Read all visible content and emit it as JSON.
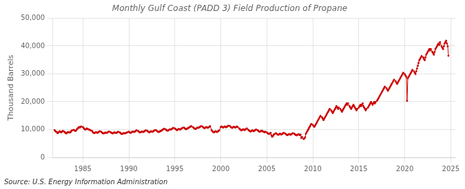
{
  "chart_data": {
    "type": "line",
    "title": "Monthly Gulf Coast (PADD 3) Field Production of Propane",
    "ylabel": "Thousand Barrels",
    "annotations": [
      "Source: U.S. Energy Information Administration"
    ],
    "color": "#cc0000",
    "marker": "square",
    "grid": true,
    "xlim": [
      1981.7,
      2025.5
    ],
    "xticks": [
      1985,
      1990,
      1995,
      2000,
      2005,
      2010,
      2015,
      2020,
      2025
    ],
    "ylim": [
      0,
      50000
    ],
    "yticks": [
      0,
      {
        "value": 10000,
        "label": "10,000"
      },
      {
        "value": 20000,
        "label": "20,000"
      },
      {
        "value": 30000,
        "label": "30,000"
      },
      {
        "value": 40000,
        "label": "40,000"
      },
      {
        "value": 50000,
        "label": "50,000"
      }
    ],
    "x": [
      1981.92,
      1982.0,
      1982.08,
      1982.17,
      1982.25,
      1982.33,
      1982.42,
      1982.5,
      1982.58,
      1982.67,
      1982.75,
      1982.83,
      1983.0,
      1983.08,
      1983.17,
      1983.25,
      1983.33,
      1983.42,
      1983.5,
      1983.58,
      1983.67,
      1983.75,
      1983.83,
      1984.0,
      1984.08,
      1984.17,
      1984.25,
      1984.33,
      1984.42,
      1984.5,
      1984.58,
      1984.67,
      1984.75,
      1984.83,
      1985.0,
      1985.08,
      1985.17,
      1985.25,
      1985.33,
      1985.42,
      1985.5,
      1985.58,
      1985.67,
      1985.75,
      1985.83,
      1986.0,
      1986.08,
      1986.17,
      1986.25,
      1986.33,
      1986.42,
      1986.5,
      1986.58,
      1986.67,
      1986.75,
      1986.83,
      1987.0,
      1987.08,
      1987.17,
      1987.25,
      1987.33,
      1987.42,
      1987.5,
      1987.58,
      1987.67,
      1987.75,
      1987.83,
      1988.0,
      1988.08,
      1988.17,
      1988.25,
      1988.33,
      1988.42,
      1988.5,
      1988.58,
      1988.67,
      1988.75,
      1988.83,
      1989.0,
      1989.08,
      1989.17,
      1989.25,
      1989.33,
      1989.42,
      1989.5,
      1989.58,
      1989.67,
      1989.75,
      1989.83,
      1990.0,
      1990.08,
      1990.17,
      1990.25,
      1990.33,
      1990.42,
      1990.5,
      1990.58,
      1990.67,
      1990.75,
      1990.83,
      1991.0,
      1991.08,
      1991.17,
      1991.25,
      1991.33,
      1991.42,
      1991.5,
      1991.58,
      1991.67,
      1991.75,
      1991.83,
      1992.0,
      1992.08,
      1992.17,
      1992.25,
      1992.33,
      1992.42,
      1992.5,
      1992.58,
      1992.67,
      1992.75,
      1992.83,
      1993.0,
      1993.08,
      1993.17,
      1993.25,
      1993.33,
      1993.42,
      1993.5,
      1993.58,
      1993.67,
      1993.75,
      1993.83,
      1994.0,
      1994.08,
      1994.17,
      1994.25,
      1994.33,
      1994.42,
      1994.5,
      1994.58,
      1994.67,
      1994.75,
      1994.83,
      1995.0,
      1995.08,
      1995.17,
      1995.25,
      1995.33,
      1995.42,
      1995.5,
      1995.58,
      1995.67,
      1995.75,
      1995.83,
      1996.0,
      1996.08,
      1996.17,
      1996.25,
      1996.33,
      1996.42,
      1996.5,
      1996.58,
      1996.67,
      1996.75,
      1996.83,
      1997.0,
      1997.08,
      1997.17,
      1997.25,
      1997.33,
      1997.42,
      1997.5,
      1997.58,
      1997.67,
      1997.75,
      1997.83,
      1998.0,
      1998.08,
      1998.17,
      1998.25,
      1998.33,
      1998.42,
      1998.5,
      1998.58,
      1998.67,
      1998.75,
      1998.83,
      1999.0,
      1999.08,
      1999.17,
      1999.25,
      1999.33,
      1999.42,
      1999.5,
      1999.58,
      1999.67,
      1999.75,
      1999.83,
      2000.0,
      2000.08,
      2000.17,
      2000.25,
      2000.33,
      2000.42,
      2000.5,
      2000.58,
      2000.67,
      2000.75,
      2000.83,
      2001.0,
      2001.08,
      2001.17,
      2001.25,
      2001.33,
      2001.42,
      2001.5,
      2001.58,
      2001.67,
      2001.75,
      2001.83,
      2002.0,
      2002.08,
      2002.17,
      2002.25,
      2002.33,
      2002.42,
      2002.5,
      2002.58,
      2002.67,
      2002.75,
      2002.83,
      2003.0,
      2003.08,
      2003.17,
      2003.25,
      2003.33,
      2003.42,
      2003.5,
      2003.58,
      2003.67,
      2003.75,
      2003.83,
      2004.0,
      2004.08,
      2004.17,
      2004.25,
      2004.33,
      2004.42,
      2004.5,
      2004.58,
      2004.67,
      2004.75,
      2004.83,
      2005.0,
      2005.08,
      2005.17,
      2005.25,
      2005.33,
      2005.42,
      2005.5,
      2005.58,
      2005.67,
      2005.75,
      2005.83,
      2006.0,
      2006.08,
      2006.17,
      2006.25,
      2006.33,
      2006.42,
      2006.5,
      2006.58,
      2006.67,
      2006.75,
      2006.83,
      2007.0,
      2007.08,
      2007.17,
      2007.25,
      2007.33,
      2007.42,
      2007.5,
      2007.58,
      2007.67,
      2007.75,
      2007.83,
      2008.0,
      2008.08,
      2008.17,
      2008.25,
      2008.33,
      2008.42,
      2008.5,
      2008.58,
      2008.67,
      2008.75,
      2008.83,
      2009.0,
      2009.08,
      2009.17,
      2009.25,
      2009.33,
      2009.42,
      2009.5,
      2009.58,
      2009.67,
      2009.75,
      2009.83,
      2010.0,
      2010.08,
      2010.17,
      2010.25,
      2010.33,
      2010.42,
      2010.5,
      2010.58,
      2010.67,
      2010.75,
      2010.83,
      2011.0,
      2011.08,
      2011.17,
      2011.25,
      2011.33,
      2011.42,
      2011.5,
      2011.58,
      2011.67,
      2011.75,
      2011.83,
      2012.0,
      2012.08,
      2012.17,
      2012.25,
      2012.33,
      2012.42,
      2012.5,
      2012.58,
      2012.67,
      2012.75,
      2012.83,
      2013.0,
      2013.08,
      2013.17,
      2013.25,
      2013.33,
      2013.42,
      2013.5,
      2013.58,
      2013.67,
      2013.75,
      2013.83,
      2014.0,
      2014.08,
      2014.17,
      2014.25,
      2014.33,
      2014.42,
      2014.5,
      2014.58,
      2014.67,
      2014.75,
      2014.83,
      2015.0,
      2015.08,
      2015.17,
      2015.25,
      2015.33,
      2015.42,
      2015.5,
      2015.58,
      2015.67,
      2015.75,
      2015.83,
      2016.0,
      2016.08,
      2016.17,
      2016.25,
      2016.33,
      2016.42,
      2016.5,
      2016.58,
      2016.67,
      2016.75,
      2016.83,
      2017.0,
      2017.08,
      2017.17,
      2017.25,
      2017.33,
      2017.42,
      2017.5,
      2017.58,
      2017.67,
      2017.75,
      2017.83,
      2018.0,
      2018.08,
      2018.17,
      2018.25,
      2018.33,
      2018.42,
      2018.5,
      2018.58,
      2018.67,
      2018.75,
      2018.83,
      2019.0,
      2019.08,
      2019.17,
      2019.25,
      2019.33,
      2019.42,
      2019.5,
      2019.58,
      2019.67,
      2019.75,
      2019.83,
      2020.0,
      2020.08,
      2020.17,
      2020.25,
      2020.33,
      2020.42,
      2020.5,
      2020.58,
      2020.67,
      2020.75,
      2020.83,
      2021.0,
      2021.08,
      2021.17,
      2021.25,
      2021.33,
      2021.42,
      2021.5,
      2021.58,
      2021.67,
      2021.75,
      2021.83,
      2022.0,
      2022.08,
      2022.17,
      2022.25,
      2022.33,
      2022.42,
      2022.5,
      2022.58,
      2022.67,
      2022.75,
      2022.83,
      2023.0,
      2023.08,
      2023.17,
      2023.25,
      2023.33,
      2023.42,
      2023.5,
      2023.58,
      2023.67,
      2023.75,
      2023.83,
      2024.0,
      2024.08,
      2024.17,
      2024.25,
      2024.33,
      2024.42,
      2024.5,
      2024.58,
      2024.67,
      2024.75
    ],
    "values": [
      9800,
      9500,
      9200,
      9100,
      8700,
      8900,
      9200,
      9400,
      9100,
      9000,
      9300,
      9500,
      9200,
      8900,
      8600,
      8700,
      9000,
      9100,
      9000,
      8900,
      9100,
      9500,
      9700,
      9900,
      9700,
      9500,
      9600,
      10000,
      10300,
      10600,
      10900,
      10700,
      11000,
      11100,
      10900,
      10600,
      10200,
      10000,
      10100,
      10400,
      10200,
      10100,
      10000,
      9900,
      9700,
      9500,
      9100,
      8800,
      8700,
      8900,
      9000,
      9000,
      8800,
      9000,
      9200,
      9400,
      9200,
      8900,
      8700,
      8600,
      8700,
      8900,
      8900,
      8800,
      8900,
      9100,
      9300,
      9100,
      8900,
      8700,
      8600,
      8800,
      9000,
      8900,
      8800,
      8800,
      9000,
      9200,
      9000,
      8800,
      8500,
      8400,
      8500,
      8700,
      8700,
      8600,
      8700,
      8900,
      9000,
      9200,
      9000,
      8800,
      8900,
      9100,
      9300,
      9200,
      9100,
      9300,
      9500,
      9700,
      9500,
      9300,
      9000,
      9000,
      9100,
      9300,
      9200,
      9100,
      9300,
      9500,
      9700,
      9600,
      9300,
      9100,
      9000,
      9200,
      9400,
      9300,
      9200,
      9400,
      9600,
      9800,
      9700,
      9400,
      9200,
      9100,
      9200,
      9500,
      9500,
      9700,
      9900,
      10100,
      10300,
      10100,
      9800,
      9600,
      9600,
      9800,
      10000,
      10100,
      10000,
      10200,
      10400,
      10600,
      10400,
      10200,
      9900,
      9800,
      10000,
      10200,
      10100,
      10000,
      10200,
      10400,
      10600,
      10700,
      10400,
      10200,
      10100,
      10300,
      10500,
      10600,
      10800,
      11000,
      11200,
      11100,
      10800,
      10500,
      10300,
      10200,
      10400,
      10600,
      10700,
      10600,
      10800,
      11000,
      11200,
      11100,
      10800,
      10600,
      10500,
      10700,
      10900,
      10800,
      10600,
      10800,
      11000,
      11200,
      9800,
      9400,
      9100,
      9000,
      9200,
      9400,
      9300,
      9100,
      9300,
      9500,
      9700,
      10900,
      11100,
      10900,
      10700,
      10900,
      11100,
      11000,
      10800,
      11000,
      11200,
      11400,
      11200,
      10900,
      10700,
      10600,
      10800,
      11000,
      10900,
      10700,
      10900,
      11100,
      10900,
      10400,
      10100,
      9900,
      9700,
      9900,
      10100,
      10000,
      9800,
      10000,
      10200,
      10400,
      9900,
      9600,
      9400,
      9300,
      9500,
      9700,
      9600,
      9400,
      9600,
      9800,
      10000,
      9800,
      9500,
      9300,
      9200,
      9400,
      9600,
      9500,
      9300,
      9200,
      9000,
      9200,
      9000,
      8700,
      8500,
      8400,
      8600,
      8800,
      7900,
      7400,
      7700,
      8100,
      8400,
      8700,
      8400,
      8200,
      8100,
      8300,
      8500,
      8400,
      8200,
      8400,
      8600,
      8800,
      8600,
      8300,
      8100,
      8000,
      8200,
      8400,
      8300,
      8100,
      8300,
      8500,
      8700,
      8500,
      8200,
      8000,
      7900,
      8100,
      8300,
      8200,
      8000,
      8200,
      7000,
      7300,
      6600,
      6800,
      7200,
      8500,
      9000,
      9500,
      10000,
      10500,
      11000,
      11500,
      12000,
      11700,
      11200,
      11000,
      11400,
      11900,
      12400,
      12900,
      13400,
      13900,
      14400,
      14900,
      14400,
      13900,
      13400,
      13900,
      14400,
      14900,
      15400,
      15900,
      16400,
      16900,
      17400,
      16900,
      16400,
      15900,
      16400,
      16900,
      17400,
      17900,
      18400,
      17900,
      17400,
      17900,
      17400,
      16900,
      16400,
      16900,
      17400,
      17900,
      18400,
      18900,
      19400,
      18900,
      19400,
      18400,
      17900,
      17400,
      17900,
      18400,
      18900,
      18400,
      17900,
      17400,
      16900,
      17400,
      17900,
      18400,
      18900,
      18400,
      18900,
      19400,
      18400,
      17900,
      17400,
      16900,
      17400,
      17900,
      18400,
      18900,
      19400,
      19900,
      19400,
      18900,
      19400,
      19900,
      19400,
      19900,
      20400,
      20900,
      21400,
      21900,
      22400,
      22900,
      23400,
      23900,
      24400,
      24900,
      25400,
      24900,
      24400,
      23900,
      24400,
      24900,
      25400,
      25900,
      26400,
      26900,
      27400,
      27900,
      27400,
      26900,
      26400,
      26900,
      27400,
      27900,
      28400,
      28900,
      29400,
      29900,
      30400,
      29900,
      29400,
      28900,
      20300,
      28400,
      28900,
      29400,
      29900,
      30400,
      30900,
      31400,
      30900,
      30400,
      29900,
      30900,
      31900,
      32900,
      33900,
      34900,
      35400,
      35900,
      36400,
      35900,
      35400,
      34900,
      35900,
      36900,
      37400,
      37900,
      38400,
      38900,
      38400,
      38900,
      37900,
      37400,
      36900,
      37900,
      38900,
      39400,
      39900,
      40400,
      40900,
      40400,
      41400,
      39900,
      39400,
      38900,
      39900,
      40900,
      41400,
      41900,
      40900,
      39900,
      36500
    ]
  }
}
